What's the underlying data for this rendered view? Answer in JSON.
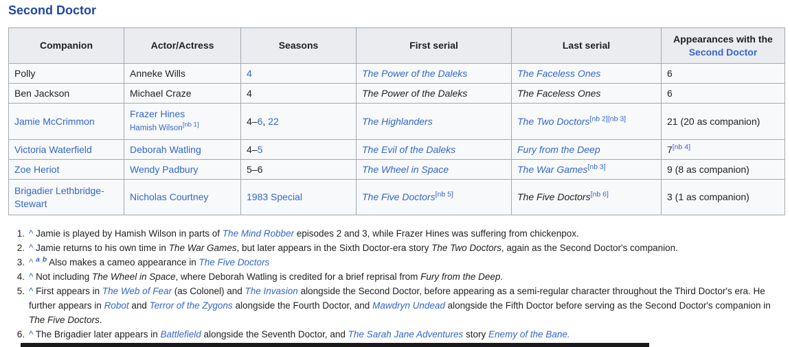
{
  "heading": "Second Doctor",
  "colors": {
    "link": "#3366cc",
    "heading": "#1d48a5",
    "text": "#202122",
    "border": "#a2a9b1",
    "header_bg": "#eaecf0",
    "cell_bg": "#f8f9fa",
    "muted_caret": "#72777d",
    "bottom_partial": "#1a1a1a"
  },
  "table": {
    "columns": [
      {
        "key": "companion",
        "segments": [
          {
            "t": "Companion",
            "st": "hplain"
          }
        ]
      },
      {
        "key": "actor-actress",
        "segments": [
          {
            "t": "Actor/Actress",
            "st": "hplain"
          }
        ]
      },
      {
        "key": "seasons",
        "segments": [
          {
            "t": "Seasons",
            "st": "hplain"
          }
        ]
      },
      {
        "key": "first-serial",
        "segments": [
          {
            "t": "First serial",
            "st": "hplain"
          }
        ]
      },
      {
        "key": "last-serial",
        "segments": [
          {
            "t": "Last serial",
            "st": "hplain"
          }
        ]
      },
      {
        "key": "appearances",
        "segments": [
          {
            "t": "Appearances with the ",
            "st": "hplain"
          },
          {
            "t": "Second Doctor",
            "st": "hlink"
          }
        ]
      }
    ],
    "rows": [
      {
        "key": "polly",
        "cells": [
          [
            {
              "t": "Polly",
              "st": "plain"
            }
          ],
          [
            {
              "t": "Anneke Wills",
              "st": "plain"
            }
          ],
          [
            {
              "t": "4",
              "st": "link"
            }
          ],
          [
            {
              "t": "The Power of the Daleks",
              "st": "ilink"
            }
          ],
          [
            {
              "t": "The Faceless Ones",
              "st": "ilink"
            }
          ],
          [
            {
              "t": "6",
              "st": "plain"
            }
          ]
        ]
      },
      {
        "key": "ben-jackson",
        "cells": [
          [
            {
              "t": "Ben Jackson",
              "st": "plain"
            }
          ],
          [
            {
              "t": "Michael Craze",
              "st": "plain"
            }
          ],
          [
            {
              "t": "4",
              "st": "plain"
            }
          ],
          [
            {
              "t": "The Power of the Daleks",
              "st": "iplain"
            }
          ],
          [
            {
              "t": "The Faceless Ones",
              "st": "iplain"
            }
          ],
          [
            {
              "t": "6",
              "st": "plain"
            }
          ]
        ]
      },
      {
        "key": "jamie-mccrimmon",
        "cells": [
          [
            {
              "t": "Jamie McCrimmon",
              "st": "link"
            }
          ],
          [
            {
              "t": "Frazer Hines",
              "st": "link"
            },
            {
              "br": true
            },
            {
              "t": "Hamish Wilson",
              "st": "smallLink"
            },
            {
              "t": "[nb 1]",
              "st": "supSmall"
            }
          ],
          [
            {
              "t": "4–",
              "st": "plain"
            },
            {
              "t": "6",
              "st": "link"
            },
            {
              "t": ", ",
              "st": "plain"
            },
            {
              "t": "22",
              "st": "link"
            }
          ],
          [
            {
              "t": "The Highlanders",
              "st": "ilink"
            }
          ],
          [
            {
              "t": "The Two Doctors",
              "st": "ilink"
            },
            {
              "t": "[nb 2]",
              "st": "sup"
            },
            {
              "t": "[nb 3]",
              "st": "sup"
            }
          ],
          [
            {
              "t": "21 (20 as companion)",
              "st": "plain"
            }
          ]
        ]
      },
      {
        "key": "victoria-waterfield",
        "cells": [
          [
            {
              "t": "Victoria Waterfield",
              "st": "link"
            }
          ],
          [
            {
              "t": "Deborah Watling",
              "st": "link"
            }
          ],
          [
            {
              "t": "4–",
              "st": "plain"
            },
            {
              "t": "5",
              "st": "link"
            }
          ],
          [
            {
              "t": "The Evil of the Daleks",
              "st": "ilink"
            }
          ],
          [
            {
              "t": "Fury from the Deep",
              "st": "ilink"
            }
          ],
          [
            {
              "t": "7",
              "st": "plain"
            },
            {
              "t": "[nb 4]",
              "st": "sup"
            }
          ]
        ]
      },
      {
        "key": "zoe-heriot",
        "cells": [
          [
            {
              "t": "Zoe Heriot",
              "st": "link"
            }
          ],
          [
            {
              "t": "Wendy Padbury",
              "st": "link"
            }
          ],
          [
            {
              "t": "5–6",
              "st": "plain"
            }
          ],
          [
            {
              "t": "The Wheel in Space",
              "st": "ilink"
            }
          ],
          [
            {
              "t": "The War Games",
              "st": "ilink"
            },
            {
              "t": "[nb 3]",
              "st": "sup"
            }
          ],
          [
            {
              "t": "9 (8 as companion)",
              "st": "plain"
            }
          ]
        ]
      },
      {
        "key": "brigadier-lethbridge-stewart",
        "cells": [
          [
            {
              "t": "Brigadier Lethbridge-Stewart",
              "st": "link"
            }
          ],
          [
            {
              "t": "Nicholas Courtney",
              "st": "link"
            }
          ],
          [
            {
              "t": "1983 Special",
              "st": "link"
            }
          ],
          [
            {
              "t": "The Five Doctors",
              "st": "ilink"
            },
            {
              "t": "[nb 5]",
              "st": "sup"
            }
          ],
          [
            {
              "t": "The Five Doctors",
              "st": "iplain"
            },
            {
              "t": "[nb 6]",
              "st": "sup"
            }
          ],
          [
            {
              "t": "3 (1 as companion)",
              "st": "plain"
            }
          ]
        ]
      }
    ]
  },
  "footnotes": {
    "items": [
      {
        "num": "1.",
        "segments": [
          {
            "t": "^",
            "st": "caret",
            "name": "backlink-caret"
          },
          {
            "t": " ",
            "st": "plain"
          },
          {
            "t": "Jamie is played by Hamish Wilson in parts of ",
            "st": "plain"
          },
          {
            "t": "The Mind Robber",
            "st": "ilink"
          },
          {
            "t": " episodes 2 and 3, while Frazer Hines was suffering from chickenpox.",
            "st": "plain"
          }
        ]
      },
      {
        "num": "2.",
        "segments": [
          {
            "t": "^",
            "st": "caret",
            "name": "backlink-caret"
          },
          {
            "t": " ",
            "st": "plain"
          },
          {
            "t": "Jamie returns to his own time in ",
            "st": "plain"
          },
          {
            "t": "The War Games",
            "st": "iplain"
          },
          {
            "t": ", but later appears in the Sixth Doctor-era story ",
            "st": "plain"
          },
          {
            "t": "The Two Doctors",
            "st": "iplain"
          },
          {
            "t": ", again as the Second Doctor's companion.",
            "st": "plain"
          }
        ]
      },
      {
        "num": "3.",
        "segments": [
          {
            "t": "^",
            "st": "caretPlain",
            "name": "backlink-caret"
          },
          {
            "t": " ",
            "st": "plain"
          },
          {
            "t": "a",
            "st": "supAB"
          },
          {
            "t": " ",
            "st": "plain"
          },
          {
            "t": "b",
            "st": "supAB"
          },
          {
            "t": " ",
            "st": "plain"
          },
          {
            "t": "Also makes a cameo appearance in ",
            "st": "plain"
          },
          {
            "t": "The Five Doctors",
            "st": "ilink"
          }
        ]
      },
      {
        "num": "4.",
        "segments": [
          {
            "t": "^",
            "st": "caret",
            "name": "backlink-caret"
          },
          {
            "t": " ",
            "st": "plain"
          },
          {
            "t": "Not including ",
            "st": "plain"
          },
          {
            "t": "The Wheel in Space",
            "st": "iplain"
          },
          {
            "t": ", where Deborah Watling is credited for a brief reprisal from ",
            "st": "plain"
          },
          {
            "t": "Fury from the Deep",
            "st": "iplain"
          },
          {
            "t": ".",
            "st": "plain"
          }
        ]
      },
      {
        "num": "5.",
        "segments": [
          {
            "t": "^",
            "st": "caret",
            "name": "backlink-caret"
          },
          {
            "t": " ",
            "st": "plain"
          },
          {
            "t": "First appears in ",
            "st": "plain"
          },
          {
            "t": "The Web of Fear",
            "st": "ilink"
          },
          {
            "t": " (as Colonel) and ",
            "st": "plain"
          },
          {
            "t": "The Invasion",
            "st": "ilink"
          },
          {
            "t": " alongside the Second Doctor, before appearing as a semi-regular character throughout the Third Doctor's era. He further appears in ",
            "st": "plain"
          },
          {
            "t": "Robot",
            "st": "ilink"
          },
          {
            "t": " and ",
            "st": "plain"
          },
          {
            "t": "Terror of the Zygons",
            "st": "ilink"
          },
          {
            "t": " alongside the Fourth Doctor, and ",
            "st": "plain"
          },
          {
            "t": "Mawdryn Undead",
            "st": "ilink"
          },
          {
            "t": " alongside the Fifth Doctor before serving as the Second Doctor's companion in ",
            "st": "plain"
          },
          {
            "t": "The Five Doctors",
            "st": "iplain"
          },
          {
            "t": ".",
            "st": "plain"
          }
        ]
      },
      {
        "num": "6.",
        "segments": [
          {
            "t": "^",
            "st": "caret",
            "name": "backlink-caret"
          },
          {
            "t": " ",
            "st": "plain"
          },
          {
            "t": "The Brigadier later appears in ",
            "st": "plain"
          },
          {
            "t": "Battlefield",
            "st": "ilink"
          },
          {
            "t": " alongside the Seventh Doctor, and ",
            "st": "plain"
          },
          {
            "t": "The Sarah Jane Adventures",
            "st": "ilink"
          },
          {
            "t": " story ",
            "st": "plain"
          },
          {
            "t": "Enemy of the Bane.",
            "st": "ilink"
          }
        ]
      }
    ]
  }
}
